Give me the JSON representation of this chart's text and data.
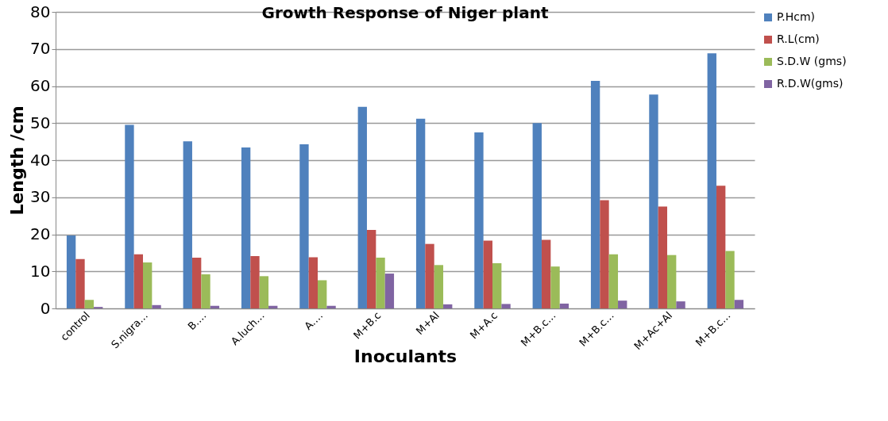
{
  "chart_data": {
    "type": "bar",
    "title": "Growth Response of  Niger plant",
    "xlabel": "Inoculants",
    "ylabel": "Length /cm",
    "categories": [
      "control",
      "S.nigra…",
      "B.…",
      "A.luch…",
      "A.…",
      "M+B.c",
      "M+Al",
      "M+A.c",
      "M+B.c…",
      "M+B.c…",
      "M+Ac+Al",
      "M+B.c…"
    ],
    "series": [
      {
        "name": "P.Hcm)",
        "color": "#4f81bd",
        "values": [
          19.7,
          49.5,
          45.1,
          43.4,
          44.3,
          54.4,
          51.2,
          47.5,
          50.0,
          61.4,
          57.7,
          68.8
        ]
      },
      {
        "name": "R.L(cm)",
        "color": "#c0504d",
        "values": [
          13.3,
          14.6,
          13.7,
          14.1,
          13.8,
          21.2,
          17.4,
          18.3,
          18.5,
          29.2,
          27.5,
          33.1
        ]
      },
      {
        "name": "S.D.W (gms)",
        "color": "#9bbb59",
        "values": [
          2.3,
          12.4,
          9.2,
          8.7,
          7.6,
          13.7,
          11.7,
          12.2,
          11.3,
          14.6,
          14.4,
          15.5
        ]
      },
      {
        "name": "R.D.W(gms)",
        "color": "#8064a2",
        "values": [
          0.4,
          0.9,
          0.7,
          0.7,
          0.7,
          9.4,
          1.1,
          1.2,
          1.3,
          2.1,
          1.9,
          2.3
        ]
      }
    ],
    "ylim": [
      0,
      80
    ],
    "yticks": [
      0,
      10,
      20,
      30,
      40,
      50,
      60,
      70,
      80
    ],
    "grid": "y",
    "legend": "top right"
  }
}
